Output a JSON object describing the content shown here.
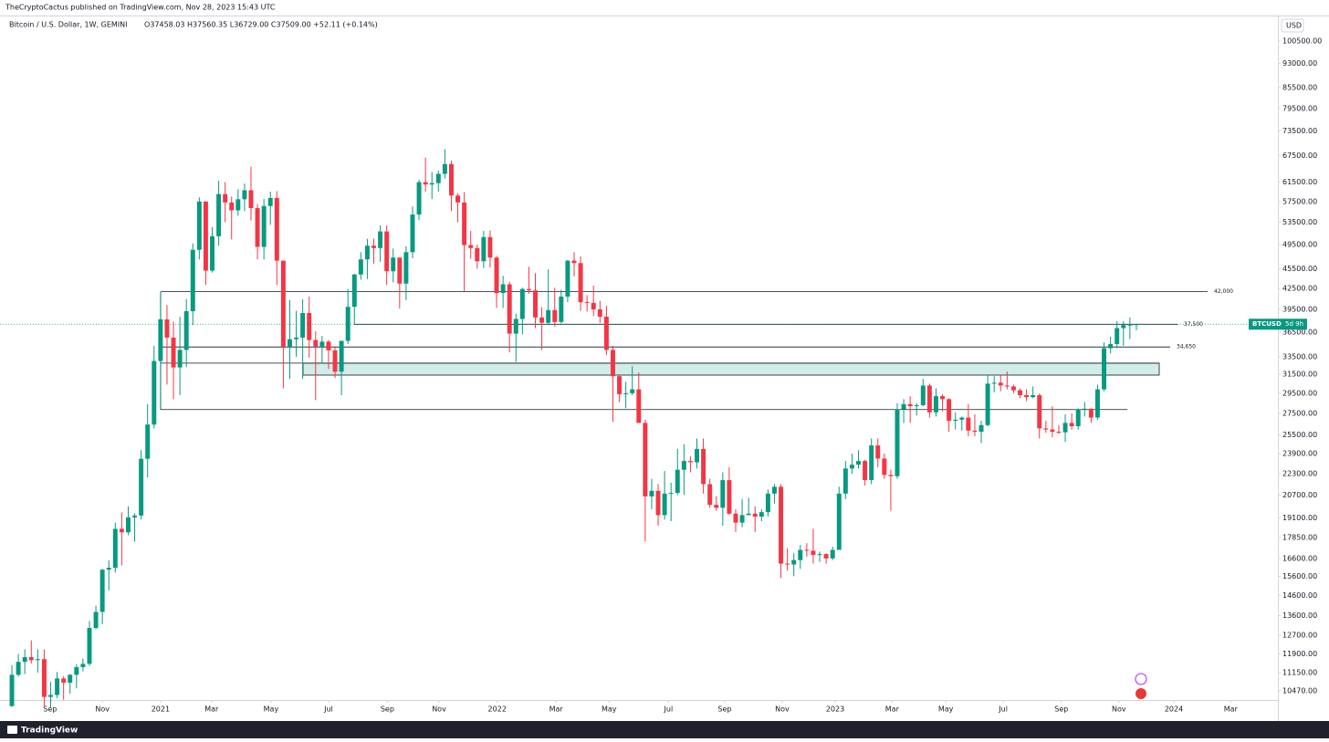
{
  "header": {
    "publisher": "TheCryptoCactus published on TradingView.com, Nov 28, 2023 15:43 UTC",
    "brand": "TradingView"
  },
  "chart_data": {
    "type": "candlestick",
    "symbol_info": "Bitcoin / U.S. Dollar, 1W, GEMINI",
    "ohlc_text": "O37458.03 H37560.35 L36729.00 C37509.00 +52.11 (+0.14%)",
    "currency": "USD",
    "price_tag": {
      "symbol": "BTCUSD",
      "countdown": "5d 9h"
    },
    "up_color": "#089981",
    "down_color": "#f23645",
    "log_y": true,
    "grid": false,
    "ylim": [
      10140,
      109500
    ],
    "yticks": [
      {
        "value": 100500,
        "label": "100500.00"
      },
      {
        "value": 93000,
        "label": "93000.00"
      },
      {
        "value": 85500,
        "label": "85500.00"
      },
      {
        "value": 79500,
        "label": "79500.00"
      },
      {
        "value": 73500,
        "label": "73500.00"
      },
      {
        "value": 67500,
        "label": "67500.00"
      },
      {
        "value": 61500,
        "label": "61500.00"
      },
      {
        "value": 57500,
        "label": "57500.00"
      },
      {
        "value": 53500,
        "label": "53500.00"
      },
      {
        "value": 49500,
        "label": "49500.00"
      },
      {
        "value": 45500,
        "label": "45500.00"
      },
      {
        "value": 42500,
        "label": "42500.00"
      },
      {
        "value": 39500,
        "label": "39500.00"
      },
      {
        "value": 36500,
        "label": "36500.00"
      },
      {
        "value": 33500,
        "label": "33500.00"
      },
      {
        "value": 31500,
        "label": "31500.00"
      },
      {
        "value": 29500,
        "label": "29500.00"
      },
      {
        "value": 27500,
        "label": "27500.00"
      },
      {
        "value": 25500,
        "label": "25500.00"
      },
      {
        "value": 23900,
        "label": "23900.00"
      },
      {
        "value": 22300,
        "label": "22300.00"
      },
      {
        "value": 20700,
        "label": "20700.00"
      },
      {
        "value": 19100,
        "label": "19100.00"
      },
      {
        "value": 17850,
        "label": "17850.00"
      },
      {
        "value": 16600,
        "label": "16600.00"
      },
      {
        "value": 15600,
        "label": "15600.00"
      },
      {
        "value": 14600,
        "label": "14600.00"
      },
      {
        "value": 13600,
        "label": "13600.00"
      },
      {
        "value": 12700,
        "label": "12700.00"
      },
      {
        "value": 11900,
        "label": "11900.00"
      },
      {
        "value": 11150,
        "label": "11150.00"
      },
      {
        "value": 10470,
        "label": "10470.00"
      }
    ],
    "xlim": [
      -1.84,
      195.9
    ],
    "xticks": [
      {
        "value": 5.9,
        "label": "Sep"
      },
      {
        "value": 14.0,
        "label": "Nov"
      },
      {
        "value": 23.0,
        "label": "2021"
      },
      {
        "value": 30.9,
        "label": "Mar"
      },
      {
        "value": 40.1,
        "label": "May"
      },
      {
        "value": 49.0,
        "label": "Jul"
      },
      {
        "value": 58.1,
        "label": "Sep"
      },
      {
        "value": 66.1,
        "label": "Nov"
      },
      {
        "value": 75.1,
        "label": "2022"
      },
      {
        "value": 84.2,
        "label": "Mar"
      },
      {
        "value": 92.4,
        "label": "May"
      },
      {
        "value": 101.6,
        "label": "Jul"
      },
      {
        "value": 110.3,
        "label": "Sep"
      },
      {
        "value": 119.2,
        "label": "Nov"
      },
      {
        "value": 127.4,
        "label": "2023"
      },
      {
        "value": 136.2,
        "label": "Mar"
      },
      {
        "value": 144.5,
        "label": "May"
      },
      {
        "value": 153.4,
        "label": "Jul"
      },
      {
        "value": 162.4,
        "label": "Sep"
      },
      {
        "value": 171.3,
        "label": "Nov"
      },
      {
        "value": 179.8,
        "label": "2024"
      },
      {
        "value": 188.6,
        "label": "Mar"
      }
    ],
    "levels": [
      {
        "value": 42000,
        "label": "42,000"
      },
      {
        "value": 37500,
        "label": "37,500"
      },
      {
        "value": 34650,
        "label": "34,650"
      }
    ],
    "lines": [
      27870
    ],
    "zone": [
      31420,
      32760
    ],
    "open": [
      9930,
      11070,
      11580,
      11770,
      11650,
      11690,
      10250,
      10320,
      10930,
      10770,
      11070,
      11370,
      11500,
      13030,
      13780,
      15960,
      16070,
      18400,
      18180,
      19150,
      19270,
      23480,
      26450,
      33000,
      38150,
      35800,
      32270,
      34300,
      39250,
      48600,
      57500,
      45200,
      50950,
      59000,
      57300,
      55750,
      57950,
      59790,
      56200,
      49100,
      56600,
      58200,
      46800,
      34700,
      35600,
      35800,
      39000,
      35500,
      34700,
      35300,
      34250,
      31800,
      35400,
      39850,
      44600,
      47000,
      49300,
      48900,
      51800,
      45100,
      47300,
      43200,
      48200,
      54950,
      61500,
      61000,
      61300,
      63300,
      65500,
      58700,
      57300,
      49400,
      48900,
      46700,
      50800,
      47300,
      41800,
      43100,
      36300,
      38200,
      42400,
      42200,
      38400,
      37700,
      39400,
      37800,
      41300,
      46800,
      46400,
      40500,
      40400,
      39500,
      38500,
      34300,
      31300,
      29400,
      29500,
      29900,
      26600,
      20600,
      21000,
      19300,
      20800,
      20850,
      22600,
      23300,
      23200,
      24300,
      21500,
      20000,
      19800,
      21800,
      19400,
      18800,
      19300,
      19400,
      19200,
      19500,
      20800,
      21300,
      16300,
      16250,
      16500,
      17100,
      17050,
      16800,
      16850,
      16600,
      17100,
      20800,
      22700,
      23000,
      23300,
      21800,
      24600,
      23500,
      22200,
      22100,
      27900,
      28400,
      28200,
      28300,
      30300,
      27600,
      29200,
      28900,
      26800,
      26900,
      27100,
      25900,
      25800,
      26400,
      30500,
      30600,
      30300,
      30200,
      29800,
      29300,
      29100,
      29300,
      26100,
      26000,
      25800,
      25750,
      26600,
      26300,
      27900,
      27950,
      27100,
      29900,
      34500,
      35000,
      37000,
      37400,
      37458.03
    ],
    "high": [
      11450,
      11900,
      12100,
      12480,
      12100,
      12090,
      10800,
      11180,
      11020,
      11100,
      11490,
      11720,
      13350,
      14080,
      16000,
      16490,
      18800,
      19480,
      19900,
      19420,
      24200,
      28400,
      34800,
      42000,
      40100,
      37850,
      38500,
      40950,
      49700,
      58350,
      57500,
      52600,
      61800,
      61500,
      58500,
      60000,
      61200,
      64900,
      57000,
      58000,
      59500,
      59600,
      46800,
      40800,
      39300,
      40900,
      41300,
      36600,
      36000,
      35500,
      34600,
      35400,
      42400,
      44700,
      48200,
      50500,
      50500,
      52900,
      52900,
      48800,
      47300,
      49200,
      56500,
      62000,
      67000,
      63700,
      64000,
      69000,
      66300,
      59200,
      59400,
      51900,
      49500,
      51900,
      52000,
      47600,
      44400,
      43500,
      38900,
      42600,
      45800,
      44800,
      39800,
      45400,
      42600,
      42300,
      46900,
      48200,
      47500,
      41500,
      42900,
      40700,
      40000,
      34800,
      31400,
      30700,
      32400,
      31700,
      26900,
      21900,
      21500,
      22500,
      21600,
      24300,
      24700,
      23700,
      25200,
      25200,
      21900,
      20600,
      22400,
      22800,
      19700,
      20400,
      20500,
      19900,
      19700,
      21100,
      21500,
      21500,
      17200,
      16900,
      17400,
      17500,
      18400,
      17000,
      16900,
      17300,
      21300,
      23300,
      23900,
      24200,
      23400,
      25200,
      25200,
      23900,
      22600,
      28500,
      28900,
      29200,
      28500,
      31000,
      30500,
      30000,
      29400,
      29000,
      27600,
      27200,
      28400,
      27400,
      26800,
      31400,
      31300,
      31500,
      31800,
      30400,
      30000,
      29900,
      30200,
      29500,
      26800,
      28200,
      26400,
      27400,
      27500,
      28000,
      28600,
      28000,
      30400,
      35200,
      35900,
      37900,
      37900,
      38400,
      37560.35
    ],
    "low": [
      9900,
      11000,
      11100,
      11510,
      11150,
      9850,
      9860,
      10200,
      10150,
      10370,
      10560,
      11200,
      11420,
      12970,
      13200,
      14850,
      15800,
      16200,
      18000,
      17600,
      19000,
      22000,
      26100,
      28000,
      30400,
      28900,
      29300,
      32300,
      37400,
      47000,
      43000,
      44900,
      49300,
      53500,
      50400,
      54700,
      55600,
      53800,
      47000,
      47000,
      53000,
      43000,
      30000,
      31000,
      33500,
      31000,
      33400,
      28800,
      32700,
      32100,
      31100,
      29300,
      35000,
      37500,
      43800,
      43900,
      46300,
      46600,
      43000,
      43400,
      39600,
      40800,
      47200,
      53900,
      59500,
      58000,
      59500,
      62300,
      55600,
      53500,
      42000,
      47100,
      45500,
      45600,
      45700,
      39700,
      39700,
      34000,
      32900,
      36200,
      41700,
      37000,
      34300,
      37400,
      37200,
      37600,
      40500,
      44300,
      39300,
      39200,
      38600,
      37700,
      33700,
      26700,
      28600,
      28000,
      29300,
      26600,
      17600,
      19700,
      18600,
      19000,
      18900,
      20700,
      20700,
      22400,
      22700,
      20800,
      19800,
      19600,
      18600,
      19300,
      18200,
      18500,
      19300,
      18200,
      18900,
      19200,
      20100,
      15500,
      15900,
      15600,
      16000,
      16700,
      16300,
      16400,
      16300,
      16500,
      17100,
      20400,
      22300,
      22700,
      21400,
      21500,
      22800,
      21900,
      19600,
      21900,
      26600,
      26600,
      27300,
      28200,
      27100,
      27200,
      27700,
      25800,
      26000,
      25900,
      25400,
      25400,
      24800,
      26300,
      29600,
      29700,
      29900,
      29500,
      29000,
      28700,
      29000,
      25200,
      25700,
      25300,
      25600,
      24900,
      26000,
      26000,
      27200,
      26600,
      26900,
      29700,
      33900,
      34500,
      34800,
      35600,
      36729
    ],
    "close": [
      11070,
      11580,
      11770,
      11650,
      11690,
      10250,
      10320,
      10930,
      10770,
      11070,
      11370,
      11500,
      13030,
      13780,
      15960,
      16070,
      18400,
      18180,
      19150,
      19270,
      23480,
      26450,
      33000,
      38150,
      35800,
      32270,
      34300,
      39250,
      48600,
      57500,
      45200,
      50950,
      59000,
      57300,
      55750,
      57950,
      59790,
      56200,
      49100,
      56600,
      58200,
      46800,
      34700,
      35600,
      35800,
      39000,
      35500,
      34700,
      35300,
      34250,
      31800,
      35400,
      39850,
      44600,
      47000,
      49300,
      48900,
      51800,
      45100,
      47300,
      43200,
      48200,
      54950,
      61500,
      61000,
      61300,
      63300,
      65500,
      58700,
      57300,
      49400,
      48900,
      46700,
      50800,
      47300,
      41800,
      43100,
      36300,
      38200,
      42400,
      42200,
      38400,
      37700,
      39400,
      37800,
      41300,
      46800,
      46400,
      40500,
      40400,
      39500,
      38500,
      34300,
      31300,
      29400,
      29500,
      29900,
      26600,
      20600,
      21000,
      19300,
      20800,
      20850,
      22600,
      23300,
      23200,
      24300,
      21500,
      20000,
      19800,
      21800,
      19400,
      18800,
      19300,
      19400,
      19200,
      19500,
      20800,
      21300,
      16300,
      16250,
      16500,
      17100,
      17050,
      16800,
      16850,
      16600,
      17100,
      20800,
      22700,
      23000,
      23300,
      21800,
      24600,
      23500,
      22200,
      22100,
      27900,
      28400,
      28200,
      28300,
      30300,
      27600,
      29200,
      28900,
      26800,
      26900,
      27100,
      25900,
      25800,
      26400,
      30500,
      30600,
      30300,
      30200,
      29800,
      29300,
      29100,
      29300,
      26100,
      26000,
      25800,
      25750,
      26600,
      26300,
      27900,
      27950,
      27100,
      29900,
      34500,
      35000,
      37000,
      37400,
      37450,
      37509
    ]
  }
}
